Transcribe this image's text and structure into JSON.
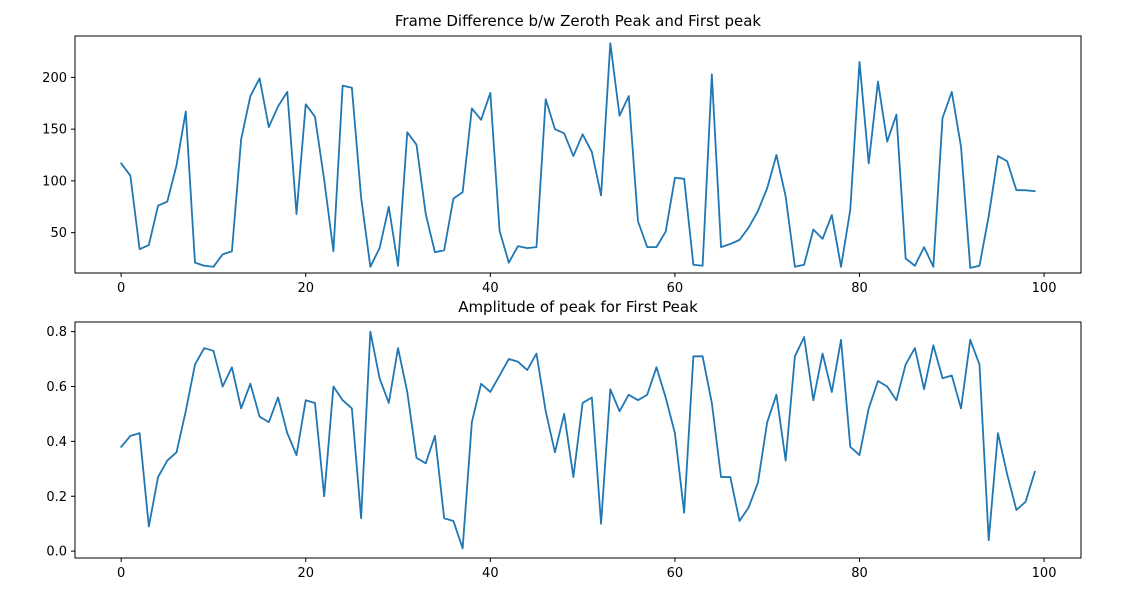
{
  "chart_data": [
    {
      "type": "line",
      "title": "Frame Difference b/w Zeroth Peak and First peak",
      "xlabel": "",
      "ylabel": "",
      "xlim": [
        -5,
        104
      ],
      "ylim": [
        11,
        240
      ],
      "xticks": [
        0,
        20,
        40,
        60,
        80,
        100
      ],
      "yticks": [
        50,
        100,
        150,
        200
      ],
      "ytick_labels": [
        "50",
        "100",
        "150",
        "200"
      ],
      "grid": false,
      "line_color": "#1f77b4",
      "series": [
        {
          "values": [
            117,
            105,
            34,
            38,
            76,
            80,
            115,
            167,
            21,
            18,
            17,
            29,
            32,
            140,
            182,
            199,
            152,
            172,
            186,
            68,
            174,
            162,
            101,
            32,
            192,
            190,
            84,
            17,
            35,
            75,
            18,
            147,
            135,
            68,
            31,
            33,
            83,
            89,
            170,
            159,
            185,
            52,
            21,
            37,
            35,
            36,
            179,
            150,
            146,
            124,
            145,
            128,
            86,
            233,
            163,
            182,
            61,
            36,
            36,
            51,
            103,
            102,
            19,
            18,
            203,
            36,
            39,
            43,
            55,
            71,
            93,
            125,
            85,
            17,
            19,
            53,
            44,
            67,
            17,
            72,
            215,
            117,
            196,
            138,
            164,
            25,
            18,
            36,
            17,
            161,
            186,
            133,
            16,
            18,
            66,
            124,
            119,
            91,
            91,
            90
          ]
        }
      ]
    },
    {
      "type": "line",
      "title": "Amplitude of peak for First Peak",
      "xlabel": "",
      "ylabel": "",
      "xlim": [
        -5,
        104
      ],
      "ylim": [
        -0.025,
        0.835
      ],
      "xticks": [
        0,
        20,
        40,
        60,
        80,
        100
      ],
      "yticks": [
        0.0,
        0.2,
        0.4,
        0.6,
        0.8
      ],
      "ytick_labels": [
        "0.0",
        "0.2",
        "0.4",
        "0.6",
        "0.8"
      ],
      "grid": false,
      "line_color": "#1f77b4",
      "series": [
        {
          "values": [
            0.38,
            0.42,
            0.43,
            0.09,
            0.27,
            0.33,
            0.36,
            0.51,
            0.68,
            0.74,
            0.73,
            0.6,
            0.67,
            0.52,
            0.61,
            0.49,
            0.47,
            0.56,
            0.43,
            0.35,
            0.55,
            0.54,
            0.2,
            0.6,
            0.55,
            0.52,
            0.12,
            0.8,
            0.63,
            0.54,
            0.74,
            0.58,
            0.34,
            0.32,
            0.42,
            0.12,
            0.11,
            0.01,
            0.47,
            0.61,
            0.58,
            0.64,
            0.7,
            0.69,
            0.66,
            0.72,
            0.51,
            0.36,
            0.5,
            0.27,
            0.54,
            0.56,
            0.1,
            0.59,
            0.51,
            0.57,
            0.55,
            0.57,
            0.67,
            0.56,
            0.43,
            0.14,
            0.71,
            0.71,
            0.54,
            0.27,
            0.27,
            0.11,
            0.16,
            0.25,
            0.47,
            0.57,
            0.33,
            0.71,
            0.78,
            0.55,
            0.72,
            0.58,
            0.77,
            0.38,
            0.35,
            0.52,
            0.62,
            0.6,
            0.55,
            0.68,
            0.74,
            0.59,
            0.75,
            0.63,
            0.64,
            0.52,
            0.77,
            0.68,
            0.04,
            0.43,
            0.28,
            0.15,
            0.18,
            0.29
          ]
        }
      ]
    }
  ]
}
